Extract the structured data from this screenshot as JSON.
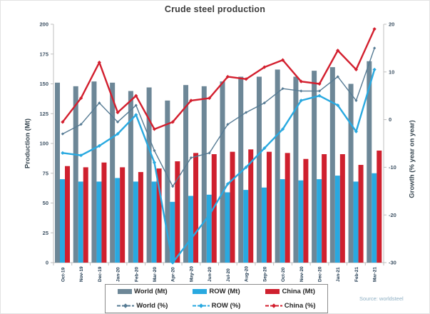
{
  "title": "Crude steel production",
  "source": "Source: worldsteel",
  "axes": {
    "left_label": "Production (Mt)",
    "right_label": "Growth (% year on year)",
    "left_ticks": [
      0,
      25,
      50,
      75,
      100,
      125,
      150,
      175,
      200
    ],
    "right_ticks": [
      -30,
      -20,
      -10,
      0,
      10,
      20
    ]
  },
  "colors": {
    "world_bar": "#6d8797",
    "row_bar": "#29a9e0",
    "china_bar": "#cf202e",
    "world_line": "#567b94",
    "row_line": "#29a9e0",
    "china_line": "#d31f2e",
    "axis_line": "#bfbfbf",
    "tick_text": "#3e5264",
    "month_text": "#203a50"
  },
  "chart_data": {
    "type": "combo bar+line",
    "title": "Crude steel production",
    "categories": [
      "Oct-19",
      "Nov-19",
      "Dec-19",
      "Jan-20",
      "Feb-20",
      "Mar-20",
      "Apr-20",
      "May-20",
      "Jun-20",
      "Jul-20",
      "Aug-20",
      "Sep-20",
      "Oct-20",
      "Nov-20",
      "Dec-20",
      "Jan-21",
      "Feb-21",
      "Mar-21"
    ],
    "left_axis": {
      "label": "Production (Mt)",
      "range": [
        0,
        200
      ]
    },
    "right_axis": {
      "label": "Growth (% year on year)",
      "range": [
        -30,
        20
      ]
    },
    "grid": false,
    "legend_position": "bottom",
    "series": [
      {
        "name": "World (Mt)",
        "kind": "bar",
        "axis": "left",
        "color": "#6d8797",
        "values": [
          151,
          148,
          152,
          151,
          144,
          147,
          136,
          149,
          148,
          152,
          156,
          156,
          162,
          156,
          161,
          164,
          150,
          169
        ]
      },
      {
        "name": "ROW (Mt)",
        "kind": "bar",
        "axis": "left",
        "color": "#29a9e0",
        "values": [
          70,
          68,
          68,
          71,
          68,
          68,
          51,
          56,
          57,
          59,
          61,
          63,
          70,
          69,
          70,
          73,
          68,
          75
        ]
      },
      {
        "name": "China (Mt)",
        "kind": "bar",
        "axis": "left",
        "color": "#cf202e",
        "values": [
          81,
          80,
          84,
          80,
          76,
          79,
          85,
          92,
          91,
          93,
          95,
          93,
          92,
          87,
          91,
          91,
          82,
          94
        ]
      },
      {
        "name": "World (%)",
        "kind": "line",
        "axis": "right",
        "color": "#567b94",
        "values": [
          -3,
          -1,
          3.5,
          -0.5,
          3,
          -6.5,
          -14,
          -8,
          -7,
          -1,
          1.5,
          3.5,
          6.5,
          6,
          6,
          9,
          4,
          15
        ]
      },
      {
        "name": "ROW (%)",
        "kind": "line",
        "axis": "right",
        "color": "#29a9e0",
        "values": [
          -7,
          -7.5,
          -5.5,
          -3,
          1,
          -9,
          -30,
          -25,
          -20,
          -13.5,
          -10,
          -6,
          -2,
          4,
          5,
          3,
          -2.5,
          10.5
        ]
      },
      {
        "name": "China (%)",
        "kind": "line",
        "axis": "right",
        "color": "#d31f2e",
        "values": [
          -0.5,
          4.5,
          12,
          1.5,
          5,
          -2,
          -0.5,
          4,
          4.5,
          9,
          8.5,
          11,
          12.5,
          8,
          7.5,
          14.5,
          10.5,
          19
        ]
      }
    ]
  },
  "legend": {
    "items": [
      {
        "label": "World (Mt)",
        "swatch": "bar",
        "color": "#6d8797"
      },
      {
        "label": "ROW (Mt)",
        "swatch": "bar",
        "color": "#29a9e0"
      },
      {
        "label": "China (Mt)",
        "swatch": "bar",
        "color": "#cf202e"
      },
      {
        "label": "World (%)",
        "swatch": "line",
        "color": "#567b94"
      },
      {
        "label": "ROW (%)",
        "swatch": "line",
        "color": "#29a9e0"
      },
      {
        "label": "China (%)",
        "swatch": "line",
        "color": "#d31f2e"
      }
    ]
  }
}
